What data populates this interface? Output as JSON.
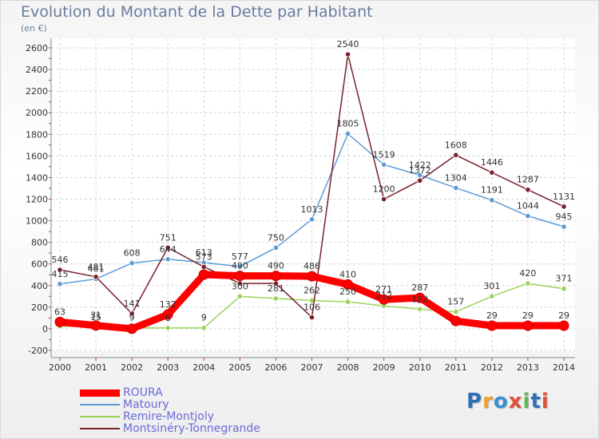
{
  "chart_data": {
    "type": "line",
    "title": "Evolution du Montant de la Dette par Habitant",
    "subtitle": "(en €)",
    "categories": [
      "2000",
      "2001",
      "2002",
      "2003",
      "2004",
      "2005",
      "2006",
      "2007",
      "2008",
      "2009",
      "2010",
      "2011",
      "2012",
      "2013",
      "2014"
    ],
    "ylim": [
      -200,
      2600
    ],
    "yticks": [
      "-200",
      "0",
      "200",
      "400",
      "600",
      "800",
      "1000",
      "1200",
      "1400",
      "1600",
      "1800",
      "2000",
      "2200",
      "2400",
      "2600"
    ],
    "grid": true,
    "legend_position": "bottom-left",
    "series": [
      {
        "name": "ROURA",
        "color": "#ff0000",
        "values": [
          63,
          31,
          0,
          132,
          502,
          490,
          490,
          486,
          410,
          271,
          287,
          72,
          29,
          29,
          29
        ],
        "labels": [
          "63",
          "31",
          "",
          "132",
          "",
          "490",
          "490",
          "486",
          "410",
          "271",
          "287",
          "",
          "29",
          "29",
          "29"
        ]
      },
      {
        "name": "Matoury",
        "color": "#5b9bd5",
        "values": [
          415,
          461,
          608,
          644,
          613,
          577,
          750,
          1013,
          1805,
          1519,
          1422,
          1304,
          1191,
          1044,
          945
        ],
        "labels": [
          "415",
          "461",
          "608",
          "644",
          "613",
          "577",
          "750",
          "1013",
          "1805",
          "1519",
          "1422",
          "1304",
          "1191",
          "1044",
          "945"
        ]
      },
      {
        "name": "Remire-Montjoly",
        "color": "#9bd35a",
        "values": [
          24,
          15,
          9,
          8,
          9,
          300,
          281,
          262,
          250,
          212,
          182,
          157,
          301,
          420,
          371
        ],
        "labels": [
          "",
          "15",
          "9",
          "8",
          "9",
          "300",
          "281",
          "262",
          "250",
          "212",
          "182",
          "157",
          "301",
          "420",
          "371"
        ]
      },
      {
        "name": "Montsinéry-Tonnegrande",
        "color": "#7a1f2b",
        "values": [
          546,
          481,
          141,
          751,
          573,
          420,
          420,
          106,
          2540,
          1200,
          1372,
          1608,
          1446,
          1287,
          1131
        ],
        "labels": [
          "546",
          "481",
          "141",
          "751",
          "573",
          "",
          "",
          "106",
          "2540",
          "1200",
          "1372",
          "1608",
          "1446",
          "1287",
          "1131"
        ]
      }
    ]
  },
  "branding": {
    "text": "Proxiti"
  }
}
